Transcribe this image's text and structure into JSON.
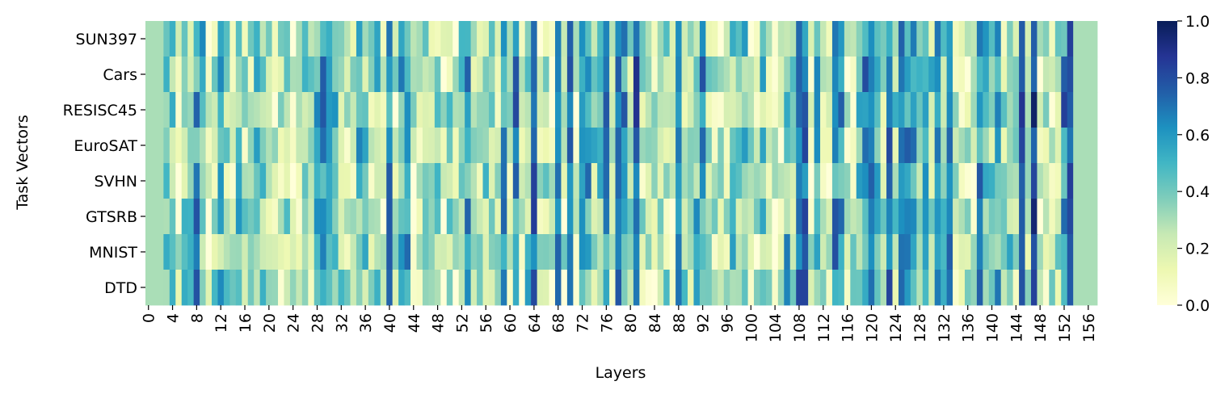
{
  "chart_data": {
    "type": "heatmap",
    "title": "",
    "xlabel": "Layers",
    "ylabel": "Task Vectors",
    "rows": [
      "SUN397",
      "Cars",
      "RESISC45",
      "EuroSAT",
      "SVHN",
      "GTSRB",
      "MNIST",
      "DTD"
    ],
    "n_columns": 158,
    "x_tick_values": [
      "0",
      "4",
      "8",
      "12",
      "16",
      "20",
      "24",
      "28",
      "32",
      "36",
      "40",
      "44",
      "48",
      "52",
      "56",
      "60",
      "64",
      "68",
      "72",
      "76",
      "80",
      "84",
      "88",
      "92",
      "96",
      "100",
      "104",
      "108",
      "112",
      "116",
      "120",
      "124",
      "128",
      "132",
      "136",
      "140",
      "144",
      "148",
      "152",
      "156"
    ],
    "colorbar": {
      "vmin": 0.0,
      "vmax": 1.0,
      "ticks": [
        "0.0",
        "0.2",
        "0.4",
        "0.6",
        "0.8",
        "1.0"
      ],
      "colormap": "YlGnBu"
    },
    "column_bands": [
      {
        "from": 0,
        "to": 2,
        "value": 0.3
      },
      {
        "from": 154,
        "to": 157,
        "value": 0.3
      }
    ],
    "strong_columns": [
      {
        "col": 30,
        "value": 0.6
      },
      {
        "col": 64,
        "value": 0.85
      },
      {
        "col": 68,
        "value": 0.8
      },
      {
        "col": 70,
        "value": 0.8
      },
      {
        "col": 78,
        "value": 0.8
      },
      {
        "col": 81,
        "value": 0.9
      },
      {
        "col": 88,
        "value": 0.7
      },
      {
        "col": 108,
        "value": 0.85
      },
      {
        "col": 120,
        "value": 0.8
      },
      {
        "col": 125,
        "value": 0.75
      },
      {
        "col": 131,
        "value": 0.75
      },
      {
        "col": 133,
        "value": 0.8
      },
      {
        "col": 145,
        "value": 0.9
      },
      {
        "col": 147,
        "value": 1.0
      },
      {
        "col": 153,
        "value": 0.95
      }
    ]
  }
}
